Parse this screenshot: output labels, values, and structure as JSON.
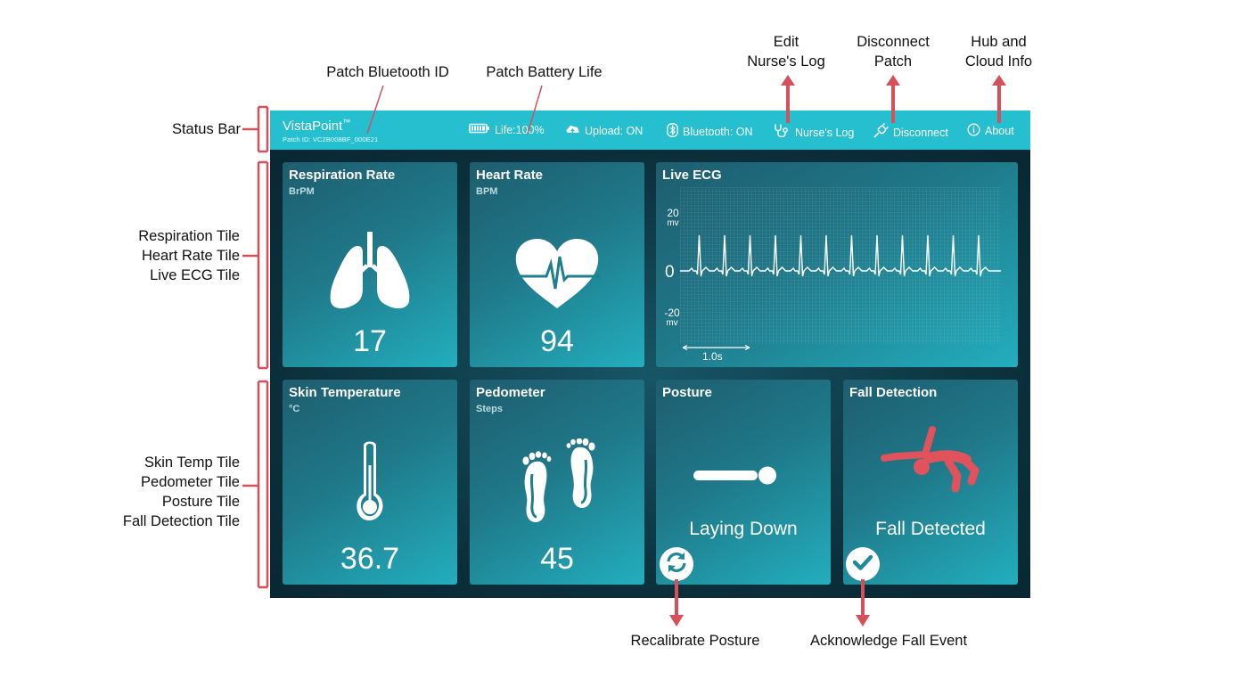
{
  "callouts": {
    "status_bar": "Status Bar",
    "patch_bluetooth_id": "Patch Bluetooth ID",
    "patch_battery_life": "Patch Battery Life",
    "edit_nurses_log": [
      "Edit",
      "Nurse's Log"
    ],
    "disconnect_patch": [
      "Disconnect",
      "Patch"
    ],
    "hub_cloud_info": [
      "Hub and",
      "Cloud Info"
    ],
    "respiration_tile": "Respiration Tile",
    "heart_rate_tile": "Heart Rate Tile",
    "live_ecg_tile": "Live ECG Tile",
    "skin_temp_tile": "Skin Temp Tile",
    "pedometer_tile": "Pedometer Tile",
    "posture_tile": "Posture Tile",
    "fall_detection_tile": "Fall Detection Tile",
    "recalibrate_posture": "Recalibrate Posture",
    "acknowledge_fall_event": "Acknowledge Fall Event"
  },
  "status_bar": {
    "brand": "VistaPoint",
    "trademark": "™",
    "patch_id": "Patch ID: VC2B008BF_000E21",
    "battery": "Life:100%",
    "upload": "Upload: ON",
    "bluetooth": "Bluetooth: ON",
    "nurses_log": "Nurse's Log",
    "disconnect": "Disconnect",
    "about": "About"
  },
  "tiles": {
    "respiration": {
      "title": "Respiration Rate",
      "unit": "BrPM",
      "value": "17",
      "icon": "lungs-icon"
    },
    "heart_rate": {
      "title": "Heart Rate",
      "unit": "BPM",
      "value": "94",
      "icon": "heart-ecg-icon"
    },
    "ecg": {
      "title": "Live ECG",
      "y_top": "20",
      "y_top_unit": "mv",
      "y_mid": "0",
      "y_bottom": "-20",
      "y_bottom_unit": "mv",
      "time_scale": "1.0s"
    },
    "skin_temp": {
      "title": "Skin Temperature",
      "unit": "°C",
      "value": "36.7",
      "icon": "thermometer-icon"
    },
    "pedometer": {
      "title": "Pedometer",
      "unit": "Steps",
      "value": "45",
      "icon": "footprints-icon"
    },
    "posture": {
      "title": "Posture",
      "status": "Laying Down",
      "icon": "laying-down-icon",
      "button_icon": "recalibrate-icon"
    },
    "fall": {
      "title": "Fall Detection",
      "status": "Fall Detected",
      "icon": "falling-person-icon",
      "button_icon": "checkmark-icon"
    }
  },
  "colors": {
    "status_bar": "#26bfd0",
    "device_bg": "#0c3440",
    "callout_arrow": "#d6505c",
    "fall_icon": "#e0525c"
  }
}
